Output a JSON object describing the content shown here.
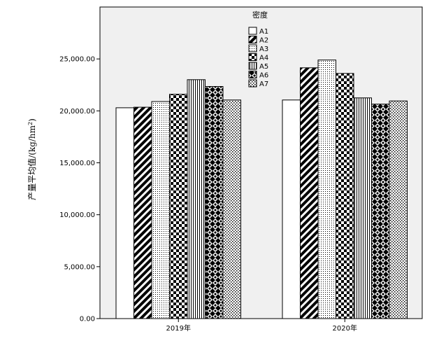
{
  "chart_data": {
    "type": "bar",
    "title": "",
    "xlabel": "",
    "ylabel": "产量平均值/(kg/hm",
    "ylabel_sup": "2",
    "ylabel_tail": ")",
    "ylim": [
      0,
      30000
    ],
    "yticks": [
      0,
      5000,
      10000,
      15000,
      20000,
      25000
    ],
    "ytick_labels": [
      "0.00",
      "5,000.00",
      "10,000.00",
      "15,000.00",
      "20,000.00",
      "25,000.00"
    ],
    "categories": [
      "2019年",
      "2020年"
    ],
    "legend_title": "密度",
    "legend_position": "top-center",
    "grid": false,
    "series": [
      {
        "name": "A1",
        "pattern": "white",
        "values": [
          20300,
          21050
        ]
      },
      {
        "name": "A2",
        "pattern": "diag-thick",
        "values": [
          20350,
          24150
        ]
      },
      {
        "name": "A3",
        "pattern": "dots-fine",
        "values": [
          20900,
          24900
        ]
      },
      {
        "name": "A4",
        "pattern": "checker",
        "values": [
          21600,
          23600
        ]
      },
      {
        "name": "A5",
        "pattern": "vertical",
        "values": [
          23000,
          21250
        ]
      },
      {
        "name": "A6",
        "pattern": "crosshatch",
        "values": [
          22350,
          20650
        ]
      },
      {
        "name": "A7",
        "pattern": "dots-coarse",
        "values": [
          21050,
          20950
        ]
      }
    ],
    "colors": {
      "plot_bg": "#f0f0f0",
      "bar_fill": "#ffffff",
      "stroke": "#000000"
    }
  }
}
